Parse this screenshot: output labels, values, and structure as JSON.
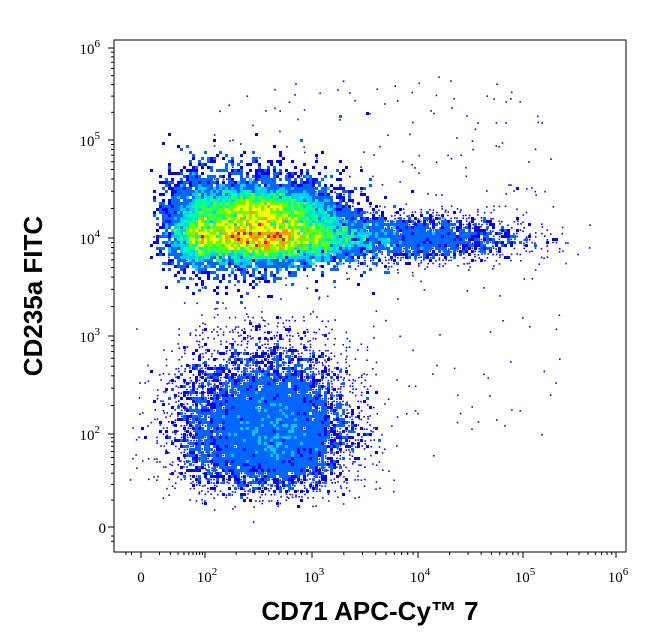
{
  "chart_data": {
    "type": "scatter",
    "subtype": "flow-cytometry-density-dot-plot",
    "title": "",
    "xlabel": "CD71 APC-Cy™ 7",
    "ylabel": "CD235a FITC",
    "x_scale": "biexponential",
    "y_scale": "biexponential",
    "xlim": [
      -30,
      1000000
    ],
    "ylim": [
      -30,
      1000000
    ],
    "x_ticks": [
      {
        "value": 0,
        "base": "0",
        "exp": ""
      },
      {
        "value": 100,
        "base": "10",
        "exp": "2"
      },
      {
        "value": 1000,
        "base": "10",
        "exp": "3"
      },
      {
        "value": 10000,
        "base": "10",
        "exp": "4"
      },
      {
        "value": 100000,
        "base": "10",
        "exp": "5"
      },
      {
        "value": 1000000,
        "base": "10",
        "exp": "6"
      }
    ],
    "y_ticks": [
      {
        "value": 0,
        "base": "0",
        "exp": ""
      },
      {
        "value": 100,
        "base": "10",
        "exp": "2"
      },
      {
        "value": 1000,
        "base": "10",
        "exp": "3"
      },
      {
        "value": 10000,
        "base": "10",
        "exp": "4"
      },
      {
        "value": 100000,
        "base": "10",
        "exp": "5"
      },
      {
        "value": 1000000,
        "base": "10",
        "exp": "6"
      }
    ],
    "populations": [
      {
        "center": [
          350,
          10000
        ],
        "spread_log": [
          0.45,
          0.12
        ],
        "peak_density": 1.0
      },
      {
        "center": [
          350,
          20000
        ],
        "spread_log": [
          0.3,
          0.1
        ],
        "peak_density": 0.45
      },
      {
        "center": [
          200,
          15000
        ],
        "spread_log": [
          0.5,
          0.25
        ],
        "peak_density": 0.35
      },
      {
        "center": [
          8000,
          10000
        ],
        "spread_log": [
          0.55,
          0.12
        ],
        "peak_density": 0.04
      },
      {
        "center": [
          450,
          120
        ],
        "spread_log": [
          0.35,
          0.4
        ],
        "peak_density": 0.12
      }
    ],
    "density_colors": [
      "#0000ff",
      "#0066ff",
      "#00ccff",
      "#00ff99",
      "#66ff00",
      "#ffff00",
      "#ff9900",
      "#ff0000"
    ],
    "grid": false,
    "legend": "none"
  }
}
